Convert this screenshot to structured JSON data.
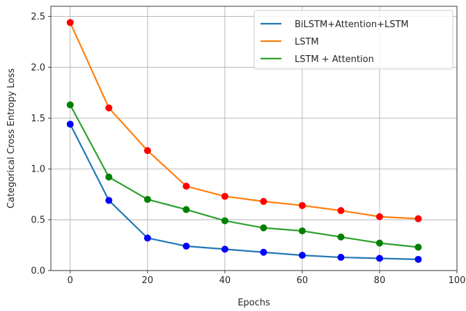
{
  "chart_data": {
    "type": "line",
    "xlabel": "Epochs",
    "ylabel": "Categorical Cross Entropy Loss",
    "xlim": [
      -5,
      100
    ],
    "ylim": [
      0.0,
      2.6
    ],
    "x_ticks": [
      0,
      20,
      40,
      60,
      80,
      100
    ],
    "y_ticks": [
      0.0,
      0.5,
      1.0,
      1.5,
      2.0,
      2.5
    ],
    "x_tick_labels": [
      "0",
      "20",
      "40",
      "60",
      "80",
      "100"
    ],
    "y_tick_labels": [
      "0.0",
      "0.5",
      "1.0",
      "1.5",
      "2.0",
      "2.5"
    ],
    "grid": true,
    "legend_position": "top-right",
    "x": [
      0,
      10,
      20,
      30,
      40,
      50,
      60,
      70,
      80,
      90
    ],
    "series": [
      {
        "name": "BiLSTM+Attention+LSTM",
        "line_color": "#1f77b4",
        "marker_color": "#0000ff",
        "values": [
          1.44,
          0.69,
          0.32,
          0.24,
          0.21,
          0.18,
          0.15,
          0.13,
          0.12,
          0.11
        ]
      },
      {
        "name": "LSTM",
        "line_color": "#ff7f0e",
        "marker_color": "#ff0000",
        "values": [
          2.44,
          1.6,
          1.18,
          0.83,
          0.73,
          0.68,
          0.64,
          0.59,
          0.53,
          0.51
        ]
      },
      {
        "name": "LSTM + Attention",
        "line_color": "#2ca02c",
        "marker_color": "#008000",
        "values": [
          1.63,
          0.92,
          0.7,
          0.6,
          0.49,
          0.42,
          0.39,
          0.33,
          0.27,
          0.23
        ]
      }
    ]
  }
}
